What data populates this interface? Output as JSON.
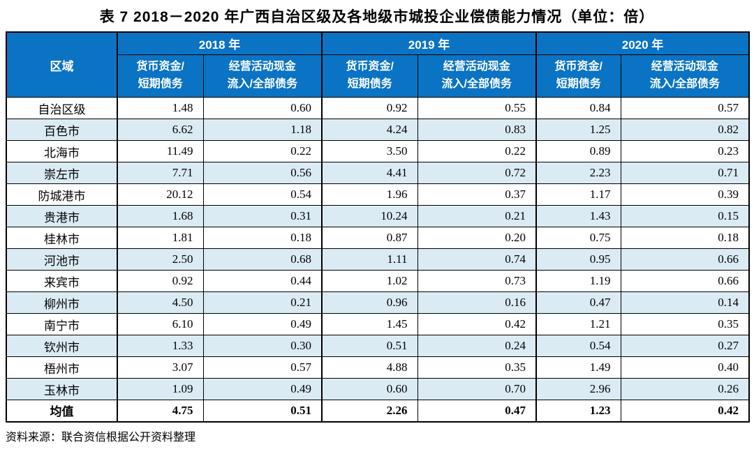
{
  "title": "表 7  2018－2020 年广西自治区级及各地级市城投企业偿债能力情况（单位：倍）",
  "source_note": "资料来源：联合资信根据公开资料整理",
  "colors": {
    "header_bg": "#0a73c4",
    "header_text": "#ffffff",
    "stripe_bg": "#dbebf4",
    "border": "#000000"
  },
  "table": {
    "region_header": "区域",
    "year_groups": [
      "2018 年",
      "2019 年",
      "2020 年"
    ],
    "metric_headers": [
      "货币资金/\n短期债务",
      "经营活动现金\n流入/全部债务"
    ],
    "rows": [
      {
        "region": "自治区级",
        "values": [
          "1.48",
          "0.60",
          "0.92",
          "0.55",
          "0.84",
          "0.57"
        ]
      },
      {
        "region": "百色市",
        "values": [
          "6.62",
          "1.18",
          "4.24",
          "0.83",
          "1.25",
          "0.82"
        ]
      },
      {
        "region": "北海市",
        "values": [
          "11.49",
          "0.22",
          "3.50",
          "0.22",
          "0.89",
          "0.23"
        ]
      },
      {
        "region": "崇左市",
        "values": [
          "7.71",
          "0.56",
          "4.41",
          "0.72",
          "2.23",
          "0.71"
        ]
      },
      {
        "region": "防城港市",
        "values": [
          "20.12",
          "0.54",
          "1.96",
          "0.37",
          "1.17",
          "0.39"
        ]
      },
      {
        "region": "贵港市",
        "values": [
          "1.68",
          "0.31",
          "10.24",
          "0.21",
          "1.43",
          "0.15"
        ]
      },
      {
        "region": "桂林市",
        "values": [
          "1.81",
          "0.18",
          "0.87",
          "0.20",
          "0.75",
          "0.18"
        ]
      },
      {
        "region": "河池市",
        "values": [
          "2.50",
          "0.68",
          "1.11",
          "0.74",
          "0.95",
          "0.66"
        ]
      },
      {
        "region": "来宾市",
        "values": [
          "0.92",
          "0.44",
          "1.02",
          "0.73",
          "1.19",
          "0.66"
        ]
      },
      {
        "region": "柳州市",
        "values": [
          "4.50",
          "0.21",
          "0.96",
          "0.16",
          "0.47",
          "0.14"
        ]
      },
      {
        "region": "南宁市",
        "values": [
          "6.10",
          "0.49",
          "1.45",
          "0.42",
          "1.21",
          "0.35"
        ]
      },
      {
        "region": "钦州市",
        "values": [
          "1.33",
          "0.30",
          "0.51",
          "0.24",
          "0.54",
          "0.27"
        ]
      },
      {
        "region": "梧州市",
        "values": [
          "3.07",
          "0.57",
          "4.88",
          "0.35",
          "1.49",
          "0.40"
        ]
      },
      {
        "region": "玉林市",
        "values": [
          "1.09",
          "0.49",
          "0.60",
          "0.70",
          "2.96",
          "0.26"
        ]
      },
      {
        "region": "均值",
        "values": [
          "4.75",
          "0.51",
          "2.26",
          "0.47",
          "1.23",
          "0.42"
        ],
        "emphasis": true
      }
    ]
  }
}
